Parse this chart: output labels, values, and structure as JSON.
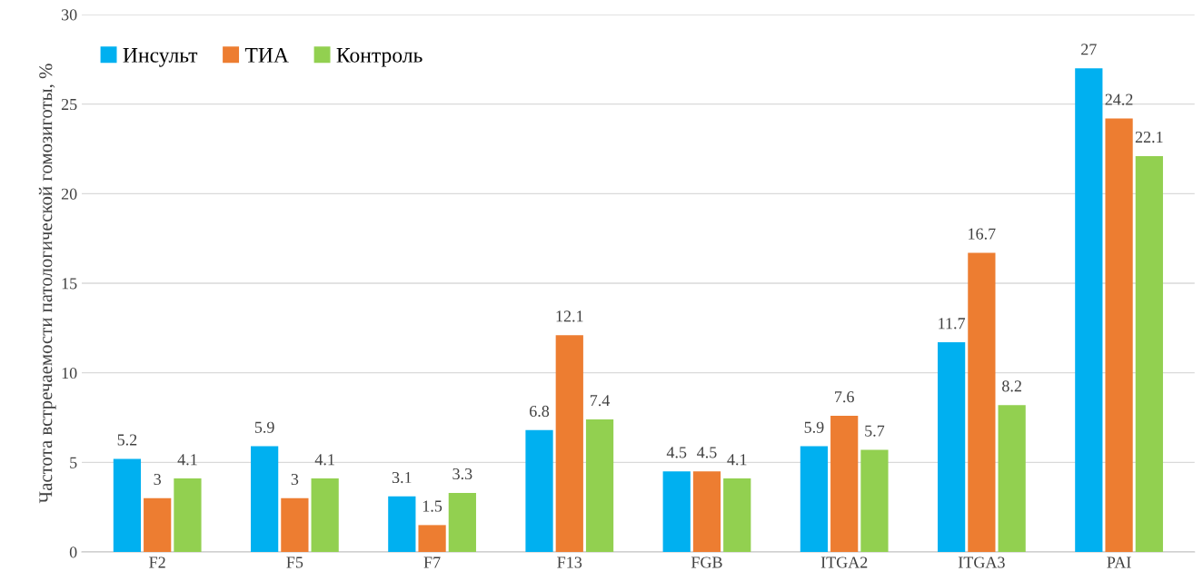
{
  "chart_data": {
    "type": "bar",
    "ylabel": "Частота встречаемости патологической гомозиготы, %",
    "categories": [
      "F2",
      "F5",
      "F7",
      "F13",
      "FGB",
      "ITGA2",
      "ITGA3",
      "PAI"
    ],
    "series": [
      {
        "name": "Инсульт",
        "color": "#00b0f0",
        "values": [
          5.2,
          5.9,
          3.1,
          6.8,
          4.5,
          5.9,
          11.7,
          27
        ]
      },
      {
        "name": "ТИА",
        "color": "#ed7d31",
        "values": [
          3,
          3,
          1.5,
          12.1,
          4.5,
          7.6,
          16.7,
          24.2
        ]
      },
      {
        "name": "Контроль",
        "color": "#92d050",
        "values": [
          4.1,
          4.1,
          3.3,
          7.4,
          4.1,
          5.7,
          8.2,
          22.1
        ]
      }
    ],
    "ylim": [
      0,
      30
    ],
    "yticks": [
      0,
      5,
      10,
      15,
      20,
      25,
      30
    ],
    "grid": "y",
    "legend": "top left",
    "data_labels": true
  }
}
